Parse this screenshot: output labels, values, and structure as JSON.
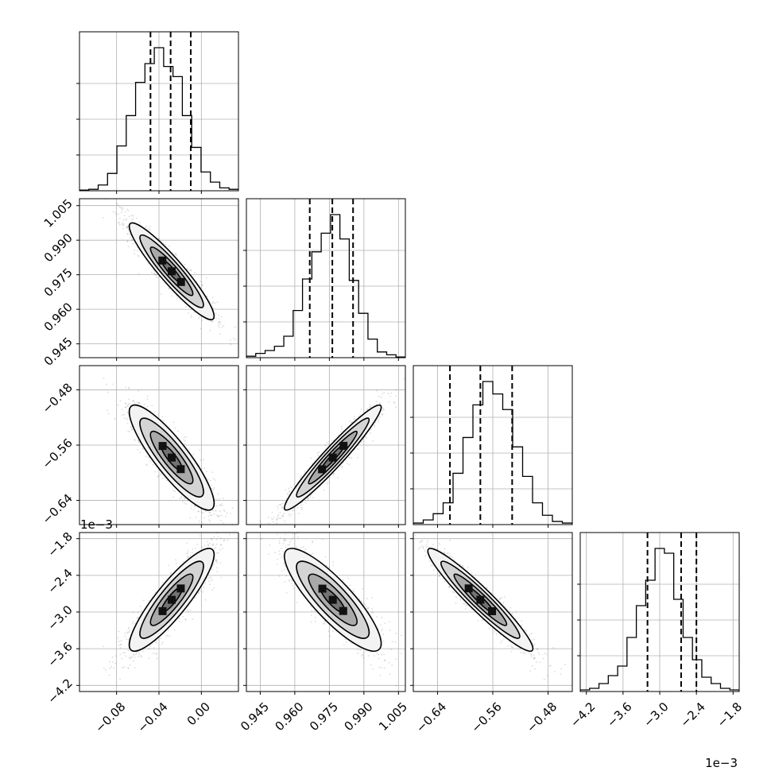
{
  "chart_data": {
    "type": "corner",
    "params": [
      {
        "range": [
          -0.115,
          0.035
        ],
        "ticks": [
          -0.08,
          -0.04,
          0.0
        ],
        "tick_labels": [
          "−0.08",
          "−0.04",
          "0.00"
        ],
        "quantiles": [
          -0.048,
          -0.029,
          -0.01
        ],
        "hist": [
          0.005,
          0.01,
          0.04,
          0.12,
          0.31,
          0.52,
          0.75,
          0.88,
          0.99,
          0.86,
          0.79,
          0.52,
          0.3,
          0.13,
          0.06,
          0.02,
          0.01
        ]
      },
      {
        "range": [
          0.939,
          1.008
        ],
        "ticks": [
          0.945,
          0.96,
          0.975,
          0.99,
          1.005
        ],
        "tick_labels": [
          "0.945",
          "0.960",
          "0.975",
          "0.990",
          "1.005"
        ],
        "quantiles": [
          0.9665,
          0.9763,
          0.9853
        ],
        "hist": [
          0.01,
          0.03,
          0.05,
          0.08,
          0.15,
          0.33,
          0.55,
          0.74,
          0.87,
          1.0,
          0.83,
          0.54,
          0.31,
          0.13,
          0.04,
          0.02,
          0.005
        ]
      },
      {
        "range": [
          -0.675,
          -0.445
        ],
        "ticks": [
          -0.64,
          -0.56,
          -0.48
        ],
        "tick_labels": [
          "−0.64",
          "−0.56",
          "−0.48"
        ],
        "quantiles": [
          -0.622,
          -0.578,
          -0.532
        ],
        "hist": [
          0.01,
          0.03,
          0.07,
          0.14,
          0.33,
          0.56,
          0.77,
          0.92,
          0.84,
          0.74,
          0.5,
          0.31,
          0.14,
          0.06,
          0.02,
          0.01
        ]
      },
      {
        "range": [
          -0.0043,
          -0.0017
        ],
        "ticks": [
          -0.0042,
          -0.0036,
          -0.003,
          -0.0024,
          -0.0018
        ],
        "tick_labels": [
          "−4.2",
          "−3.6",
          "−3.0",
          "−2.4",
          "−1.8"
        ],
        "quantiles": [
          -0.0032,
          -0.00265,
          -0.0024
        ],
        "hist": [
          0.01,
          0.02,
          0.05,
          0.1,
          0.16,
          0.34,
          0.54,
          0.7,
          0.9,
          0.87,
          0.58,
          0.34,
          0.2,
          0.09,
          0.05,
          0.02,
          0.01
        ]
      }
    ],
    "pairs": [
      {
        "x": 0,
        "y": 1,
        "center": [
          -0.028,
          0.9765
        ],
        "sd": [
          0.02,
          0.0105
        ],
        "rho": -0.93
      },
      {
        "x": 0,
        "y": 2,
        "center": [
          -0.028,
          -0.578
        ],
        "sd": [
          0.02,
          0.038
        ],
        "rho": -0.87
      },
      {
        "x": 1,
        "y": 2,
        "center": [
          0.9765,
          -0.578
        ],
        "sd": [
          0.0105,
          0.038
        ],
        "rho": 0.96
      },
      {
        "x": 0,
        "y": 3,
        "center": [
          -0.028,
          -0.0028
        ],
        "sd": [
          0.02,
          0.00042
        ],
        "rho": 0.88
      },
      {
        "x": 1,
        "y": 3,
        "center": [
          0.9765,
          -0.0028
        ],
        "sd": [
          0.0105,
          0.00042
        ],
        "rho": -0.85
      },
      {
        "x": 2,
        "y": 3,
        "center": [
          -0.578,
          -0.0028
        ],
        "sd": [
          0.038,
          0.00042
        ],
        "rho": -0.95
      }
    ],
    "offset_labels": {
      "y_row4": "1e−3",
      "x_col4": "1e−3"
    },
    "grid": true,
    "dashed_quantiles": true
  }
}
